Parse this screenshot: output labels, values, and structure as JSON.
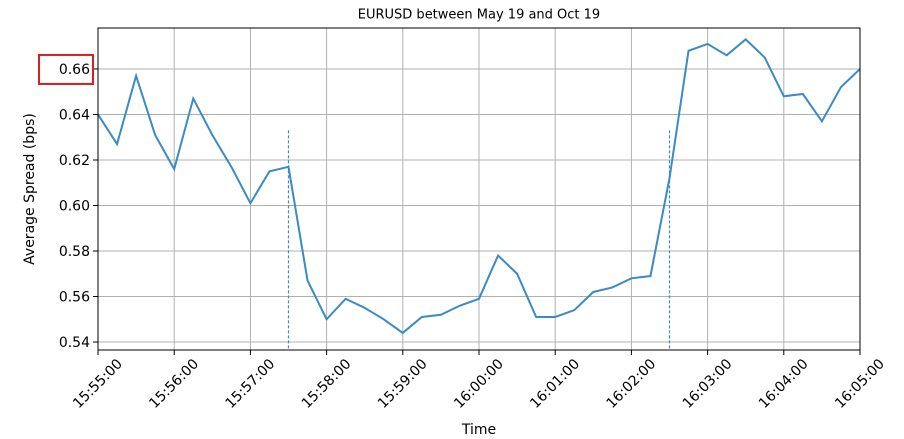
{
  "chart_data": {
    "type": "line",
    "title": "EURUSD between May 19 and Oct 19",
    "xlabel": "Time",
    "ylabel": "Average Spread (bps)",
    "color": "#3b8bc2",
    "x": [
      "15:55:00",
      "15:55:15",
      "15:55:30",
      "15:55:45",
      "15:56:00",
      "15:56:15",
      "15:56:30",
      "15:56:45",
      "15:57:00",
      "15:57:15",
      "15:57:30",
      "15:57:45",
      "15:58:00",
      "15:58:15",
      "15:58:30",
      "15:58:45",
      "15:59:00",
      "15:59:15",
      "15:59:30",
      "15:59:45",
      "16:00:00",
      "16:00:15",
      "16:00:30",
      "16:00:45",
      "16:01:00",
      "16:01:15",
      "16:01:30",
      "16:01:45",
      "16:02:00",
      "16:02:15",
      "16:02:30",
      "16:02:45",
      "16:03:00",
      "16:03:15",
      "16:03:30",
      "16:03:45",
      "16:04:00",
      "16:04:15",
      "16:04:30",
      "16:04:45",
      "16:05:00"
    ],
    "values": [
      0.64,
      0.627,
      0.657,
      0.631,
      0.616,
      0.647,
      0.631,
      0.617,
      0.601,
      0.615,
      0.617,
      0.567,
      0.55,
      0.559,
      0.555,
      0.55,
      0.544,
      0.551,
      0.552,
      0.556,
      0.559,
      0.578,
      0.57,
      0.551,
      0.551,
      0.554,
      0.562,
      0.564,
      0.568,
      0.569,
      0.612,
      0.668,
      0.671,
      0.666,
      0.673,
      0.665,
      0.648,
      0.649,
      0.637,
      0.652,
      0.66
    ],
    "vlines": [
      {
        "x": "15:57:30",
        "ymax": 0.633
      },
      {
        "x": "16:02:30",
        "ymax": 0.633
      }
    ],
    "xlim": [
      "15:55:00",
      "16:05:00"
    ],
    "xticks": [
      "15:55:00",
      "15:56:00",
      "15:57:00",
      "15:58:00",
      "15:59:00",
      "16:00:00",
      "16:01:00",
      "16:02:00",
      "16:03:00",
      "16:04:00",
      "16:05:00"
    ],
    "ylim": [
      0.5365,
      0.678
    ],
    "yticks": [
      0.54,
      0.56,
      0.58,
      {
        "value": 0.6,
        "label": "0.60"
      },
      0.62,
      0.64,
      0.66
    ],
    "highlight_ytick": 0.66,
    "grid": true
  }
}
